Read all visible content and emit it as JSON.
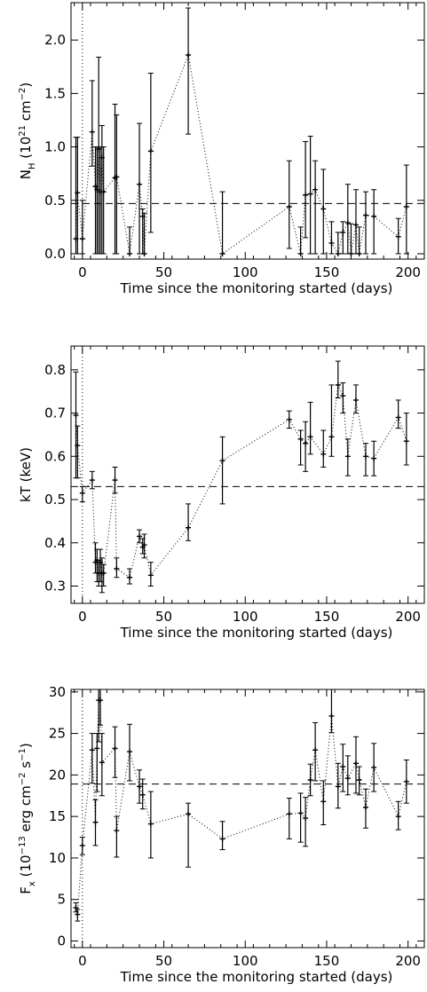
{
  "chart_data": [
    {
      "type": "scatter",
      "title": "",
      "xlabel": "Time since the monitoring started (days)",
      "ylabel": "N_H (10^21 cm^-2)",
      "ylabel_parts": {
        "a": "N",
        "a_sub": "H",
        "b": " (10",
        "b_sup": "21",
        "c": " cm",
        "c_sup": "−2",
        "d": ")"
      },
      "xlim": [
        -7,
        210
      ],
      "ylim": [
        -0.05,
        2.35
      ],
      "xticks": [
        0,
        50,
        100,
        150,
        200
      ],
      "yticks": [
        0.0,
        0.5,
        1.0,
        1.5,
        2.0
      ],
      "ytick_labels": [
        "0.0",
        "0.5",
        "1.0",
        "1.5",
        "2.0"
      ],
      "mean_line": 0.47,
      "vline_x": 0,
      "grid": false,
      "series": [
        {
          "points": [
            {
              "x": -4,
              "y": 0.14,
              "lo": 0.0,
              "hi": 1.09
            },
            {
              "x": -3,
              "y": 0.57,
              "lo": 0.0,
              "hi": 1.09
            },
            {
              "x": 0,
              "y": 0.14,
              "lo": 0.0,
              "hi": 0.5
            },
            {
              "x": 6,
              "y": 1.14,
              "lo": 0.82,
              "hi": 1.62
            },
            {
              "x": 8,
              "y": 0.63,
              "lo": 0.0,
              "hi": 1.0
            },
            {
              "x": 9,
              "y": 0.6,
              "lo": 0.0,
              "hi": 1.0
            },
            {
              "x": 10,
              "y": 0.98,
              "lo": 0.0,
              "hi": 1.84
            },
            {
              "x": 11,
              "y": 0.58,
              "lo": 0.0,
              "hi": 1.0
            },
            {
              "x": 12,
              "y": 0.9,
              "lo": 0.0,
              "hi": 1.2
            },
            {
              "x": 13,
              "y": 0.58,
              "lo": 0.0,
              "hi": 1.0
            },
            {
              "x": 20,
              "y": 0.71,
              "lo": 0.0,
              "hi": 1.4
            },
            {
              "x": 21,
              "y": 0.72,
              "lo": 0.0,
              "hi": 1.3
            },
            {
              "x": 29,
              "y": 0.0,
              "lo": 0.0,
              "hi": 0.25
            },
            {
              "x": 35,
              "y": 0.65,
              "lo": 0.0,
              "hi": 1.22
            },
            {
              "x": 37,
              "y": 0.35,
              "lo": 0.0,
              "hi": 0.42
            },
            {
              "x": 38,
              "y": 0.0,
              "lo": 0.0,
              "hi": 0.38
            },
            {
              "x": 42,
              "y": 0.96,
              "lo": 0.2,
              "hi": 1.69
            },
            {
              "x": 65,
              "y": 1.86,
              "lo": 1.12,
              "hi": 2.3
            },
            {
              "x": 86,
              "y": 0.0,
              "lo": 0.0,
              "hi": 0.58
            },
            {
              "x": 127,
              "y": 0.44,
              "lo": 0.05,
              "hi": 0.87
            },
            {
              "x": 134,
              "y": 0.0,
              "lo": 0.0,
              "hi": 0.25
            },
            {
              "x": 137,
              "y": 0.55,
              "lo": 0.15,
              "hi": 1.05
            },
            {
              "x": 140,
              "y": 0.56,
              "lo": 0.0,
              "hi": 1.1
            },
            {
              "x": 143,
              "y": 0.6,
              "lo": 0.0,
              "hi": 0.87
            },
            {
              "x": 148,
              "y": 0.42,
              "lo": 0.0,
              "hi": 0.79
            },
            {
              "x": 153,
              "y": 0.1,
              "lo": 0.0,
              "hi": 0.3
            },
            {
              "x": 157,
              "y": 0.0,
              "lo": 0.0,
              "hi": 0.2
            },
            {
              "x": 160,
              "y": 0.2,
              "lo": 0.0,
              "hi": 0.3
            },
            {
              "x": 163,
              "y": 0.29,
              "lo": 0.0,
              "hi": 0.65
            },
            {
              "x": 165,
              "y": 0.0,
              "lo": 0.0,
              "hi": 0.28
            },
            {
              "x": 168,
              "y": 0.27,
              "lo": 0.0,
              "hi": 0.6
            },
            {
              "x": 170,
              "y": 0.0,
              "lo": 0.0,
              "hi": 0.25
            },
            {
              "x": 174,
              "y": 0.36,
              "lo": 0.0,
              "hi": 0.58
            },
            {
              "x": 179,
              "y": 0.35,
              "lo": 0.0,
              "hi": 0.6
            },
            {
              "x": 194,
              "y": 0.16,
              "lo": 0.0,
              "hi": 0.33
            },
            {
              "x": 199,
              "y": 0.44,
              "lo": 0.0,
              "hi": 0.83
            }
          ]
        }
      ]
    },
    {
      "type": "scatter",
      "title": "",
      "xlabel": "Time since the monitoring started (days)",
      "ylabel": "kT (keV)",
      "xlim": [
        -7,
        210
      ],
      "ylim": [
        0.26,
        0.855
      ],
      "xticks": [
        0,
        50,
        100,
        150,
        200
      ],
      "yticks": [
        0.3,
        0.4,
        0.5,
        0.6,
        0.7,
        0.8
      ],
      "ytick_labels": [
        "0.3",
        "0.4",
        "0.5",
        "0.6",
        "0.7",
        "0.8"
      ],
      "mean_line": 0.53,
      "vline_x": 0,
      "grid": false,
      "series": [
        {
          "points": [
            {
              "x": -4,
              "y": 0.695,
              "lo": 0.55,
              "hi": 0.795
            },
            {
              "x": -3,
              "y": 0.625,
              "lo": 0.55,
              "hi": 0.67
            },
            {
              "x": 0,
              "y": 0.515,
              "lo": 0.495,
              "hi": 0.53
            },
            {
              "x": 6,
              "y": 0.545,
              "lo": 0.525,
              "hi": 0.565
            },
            {
              "x": 8,
              "y": 0.355,
              "lo": 0.33,
              "hi": 0.4
            },
            {
              "x": 9,
              "y": 0.36,
              "lo": 0.31,
              "hi": 0.385
            },
            {
              "x": 10,
              "y": 0.33,
              "lo": 0.3,
              "hi": 0.36
            },
            {
              "x": 11,
              "y": 0.355,
              "lo": 0.31,
              "hi": 0.385
            },
            {
              "x": 12,
              "y": 0.33,
              "lo": 0.285,
              "hi": 0.365
            },
            {
              "x": 13,
              "y": 0.33,
              "lo": 0.3,
              "hi": 0.35
            },
            {
              "x": 20,
              "y": 0.545,
              "lo": 0.515,
              "hi": 0.575
            },
            {
              "x": 21,
              "y": 0.34,
              "lo": 0.32,
              "hi": 0.365
            },
            {
              "x": 29,
              "y": 0.32,
              "lo": 0.305,
              "hi": 0.34
            },
            {
              "x": 35,
              "y": 0.415,
              "lo": 0.4,
              "hi": 0.43
            },
            {
              "x": 37,
              "y": 0.39,
              "lo": 0.375,
              "hi": 0.41
            },
            {
              "x": 38,
              "y": 0.395,
              "lo": 0.365,
              "hi": 0.42
            },
            {
              "x": 42,
              "y": 0.325,
              "lo": 0.3,
              "hi": 0.355
            },
            {
              "x": 65,
              "y": 0.435,
              "lo": 0.405,
              "hi": 0.49
            },
            {
              "x": 86,
              "y": 0.59,
              "lo": 0.49,
              "hi": 0.645
            },
            {
              "x": 127,
              "y": 0.685,
              "lo": 0.665,
              "hi": 0.705
            },
            {
              "x": 134,
              "y": 0.64,
              "lo": 0.58,
              "hi": 0.66
            },
            {
              "x": 137,
              "y": 0.63,
              "lo": 0.565,
              "hi": 0.68
            },
            {
              "x": 140,
              "y": 0.645,
              "lo": 0.605,
              "hi": 0.725
            },
            {
              "x": 148,
              "y": 0.605,
              "lo": 0.575,
              "hi": 0.66
            },
            {
              "x": 153,
              "y": 0.645,
              "lo": 0.6,
              "hi": 0.765
            },
            {
              "x": 157,
              "y": 0.765,
              "lo": 0.735,
              "hi": 0.82
            },
            {
              "x": 160,
              "y": 0.74,
              "lo": 0.7,
              "hi": 0.77
            },
            {
              "x": 163,
              "y": 0.6,
              "lo": 0.555,
              "hi": 0.64
            },
            {
              "x": 168,
              "y": 0.73,
              "lo": 0.7,
              "hi": 0.765
            },
            {
              "x": 174,
              "y": 0.6,
              "lo": 0.555,
              "hi": 0.63
            },
            {
              "x": 179,
              "y": 0.595,
              "lo": 0.555,
              "hi": 0.635
            },
            {
              "x": 194,
              "y": 0.69,
              "lo": 0.665,
              "hi": 0.73
            },
            {
              "x": 199,
              "y": 0.635,
              "lo": 0.58,
              "hi": 0.7
            }
          ]
        }
      ]
    },
    {
      "type": "scatter",
      "title": "",
      "xlabel": "Time since the monitoring started (days)",
      "ylabel": "F_x (10^-13 erg cm^-2 s^-1)",
      "ylabel_parts": {
        "a": "F",
        "a_sub": "x",
        "b": " (10",
        "b_sup": "−13",
        "c": " erg cm",
        "c_sup": "−2",
        "d": " s",
        "d_sup": "−1",
        "e": ")"
      },
      "xlim": [
        -7,
        210
      ],
      "ylim": [
        -0.8,
        30.3
      ],
      "xticks": [
        0,
        50,
        100,
        150,
        200
      ],
      "yticks": [
        0,
        5,
        10,
        15,
        20,
        25,
        30
      ],
      "ytick_labels": [
        "0",
        "5",
        "10",
        "15",
        "20",
        "25",
        "30"
      ],
      "mean_line": 18.9,
      "vline_x": 0,
      "grid": false,
      "series": [
        {
          "points": [
            {
              "x": -4,
              "y": 4.0,
              "lo": 3.5,
              "hi": 4.6
            },
            {
              "x": -3,
              "y": 3.2,
              "lo": 2.4,
              "hi": 3.8
            },
            {
              "x": 0,
              "y": 11.5,
              "lo": 10.4,
              "hi": 12.5
            },
            {
              "x": 6,
              "y": 23.0,
              "lo": 19.0,
              "hi": 25.0
            },
            {
              "x": 8,
              "y": 14.3,
              "lo": 11.5,
              "hi": 17.0
            },
            {
              "x": 9,
              "y": 23.2,
              "lo": 18.0,
              "hi": 25.0
            },
            {
              "x": 10,
              "y": 29.0,
              "lo": 24.0,
              "hi": 30.3
            },
            {
              "x": 11,
              "y": 29.0,
              "lo": 26.0,
              "hi": 30.3
            },
            {
              "x": 12,
              "y": 21.5,
              "lo": 17.5,
              "hi": 25.0
            },
            {
              "x": 20,
              "y": 23.2,
              "lo": 19.7,
              "hi": 25.8
            },
            {
              "x": 21,
              "y": 13.3,
              "lo": 10.1,
              "hi": 15.0
            },
            {
              "x": 29,
              "y": 22.8,
              "lo": 19.3,
              "hi": 26.1
            },
            {
              "x": 35,
              "y": 18.6,
              "lo": 16.6,
              "hi": 20.6
            },
            {
              "x": 37,
              "y": 17.6,
              "lo": 15.9,
              "hi": 19.5
            },
            {
              "x": 42,
              "y": 14.1,
              "lo": 10.0,
              "hi": 18.0
            },
            {
              "x": 65,
              "y": 15.3,
              "lo": 8.9,
              "hi": 16.6
            },
            {
              "x": 86,
              "y": 12.3,
              "lo": 11.0,
              "hi": 14.4
            },
            {
              "x": 127,
              "y": 15.3,
              "lo": 12.3,
              "hi": 17.2
            },
            {
              "x": 134,
              "y": 15.4,
              "lo": 11.9,
              "hi": 17.8
            },
            {
              "x": 137,
              "y": 14.8,
              "lo": 11.4,
              "hi": 17.3
            },
            {
              "x": 140,
              "y": 19.4,
              "lo": 17.5,
              "hi": 21.3
            },
            {
              "x": 143,
              "y": 23.0,
              "lo": 19.3,
              "hi": 26.3
            },
            {
              "x": 148,
              "y": 16.8,
              "lo": 14.0,
              "hi": 19.3
            },
            {
              "x": 153,
              "y": 27.1,
              "lo": 25.1,
              "hi": 30.3
            },
            {
              "x": 157,
              "y": 18.6,
              "lo": 16.0,
              "hi": 21.4
            },
            {
              "x": 160,
              "y": 21.0,
              "lo": 18.0,
              "hi": 23.7
            },
            {
              "x": 163,
              "y": 19.6,
              "lo": 17.6,
              "hi": 22.3
            },
            {
              "x": 168,
              "y": 21.4,
              "lo": 17.8,
              "hi": 24.6
            },
            {
              "x": 170,
              "y": 19.4,
              "lo": 17.6,
              "hi": 21.0
            },
            {
              "x": 174,
              "y": 16.1,
              "lo": 13.6,
              "hi": 18.3
            },
            {
              "x": 179,
              "y": 20.9,
              "lo": 18.0,
              "hi": 23.8
            },
            {
              "x": 194,
              "y": 15.0,
              "lo": 13.4,
              "hi": 16.8
            },
            {
              "x": 199,
              "y": 19.2,
              "lo": 16.6,
              "hi": 21.8
            }
          ]
        }
      ]
    }
  ]
}
